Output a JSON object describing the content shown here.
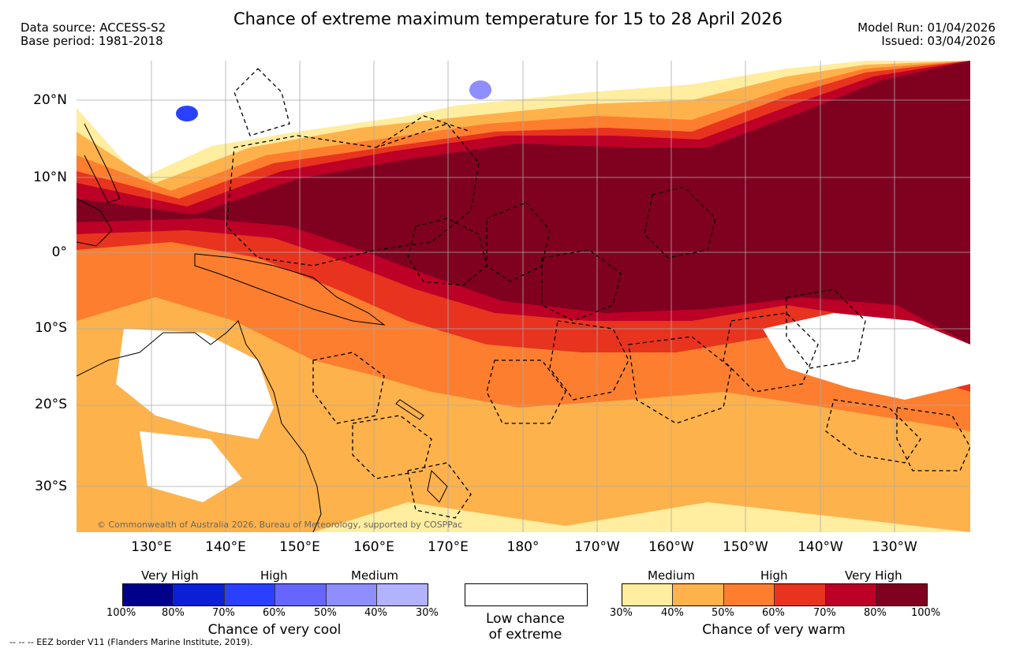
{
  "header": {
    "title": "Chance of extreme maximum temperature for 15 to 28 April 2026",
    "data_source": "Data source: ACCESS-S2",
    "base_period": "Base period: 1981-2018",
    "model_run": "Model Run: 01/04/2026",
    "issued": "Issued: 03/04/2026"
  },
  "map": {
    "lat_labels": [
      "20°N",
      "10°N",
      "0°",
      "10°S",
      "20°S",
      "30°S"
    ],
    "lon_labels": [
      "130°E",
      "140°E",
      "150°E",
      "160°E",
      "170°E",
      "180°",
      "170°W",
      "160°W",
      "150°W",
      "140°W",
      "130°W"
    ],
    "copyright": "© Commonwealth of Australia 2026, Bureau of Meteorology, supported by COSPPac"
  },
  "legend": {
    "cool": {
      "levels": [
        "Very High",
        "High",
        "Medium"
      ],
      "ticks": [
        "100%",
        "80%",
        "70%",
        "60%",
        "50%",
        "40%",
        "30%"
      ],
      "colors": [
        "#00008b",
        "#0a1fd6",
        "#2a40ff",
        "#6666ff",
        "#8e8eff",
        "#b2b2ff"
      ],
      "caption": "Chance of very cool"
    },
    "neutral": {
      "line1": "Low chance",
      "line2": "of extreme"
    },
    "warm": {
      "levels": [
        "Medium",
        "High",
        "Very High"
      ],
      "ticks": [
        "30%",
        "40%",
        "50%",
        "60%",
        "70%",
        "80%",
        "100%"
      ],
      "colors": [
        "#ffeda0",
        "#feb24c",
        "#fd7e2e",
        "#e8331f",
        "#bd0026",
        "#800020"
      ],
      "caption": "Chance of very warm"
    }
  },
  "footer": {
    "eez_note": "--  --  -- EEZ border V11 (Flanders Marine Institute, 2019)."
  }
}
